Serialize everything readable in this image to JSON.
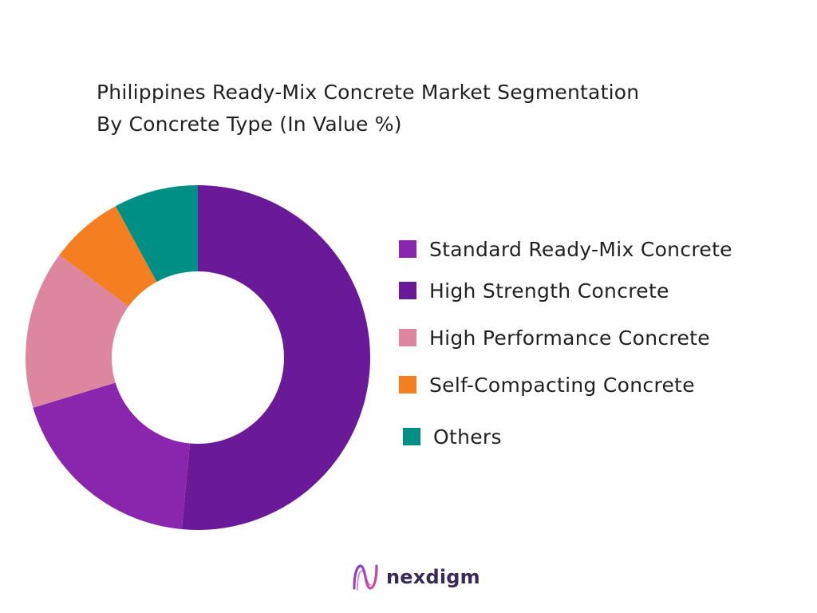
{
  "title_lines": [
    "Philippines Ready-Mix Concrete Market Segmentation",
    "By Concrete Type (In Value %)"
  ],
  "chart_data": {
    "type": "pie",
    "variant": "donut",
    "title": "Philippines Ready-Mix Concrete Market Segmentation By Concrete Type (In Value %)",
    "categories": [
      "Standard Ready-Mix Concrete",
      "High Strength Concrete",
      "High Performance Concrete",
      "Self-Compacting Concrete",
      "Others"
    ],
    "values": [
      19,
      52,
      15,
      7,
      8
    ],
    "colors": [
      "#8a25ad",
      "#6a1a99",
      "#de86a0",
      "#f57f20",
      "#008f85"
    ],
    "legend_position": "right"
  },
  "logo": {
    "text": "nexdigm",
    "icon": "nexdigm-logo-icon"
  }
}
